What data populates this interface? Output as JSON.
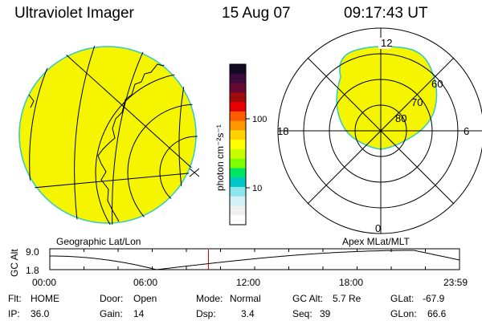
{
  "header": {
    "instrument": "Ultraviolet Imager",
    "date": "15 Aug 07",
    "time": "09:17:43 UT"
  },
  "colorbar": {
    "unit_label": "photon cm⁻²s⁻¹",
    "tick_100": "100",
    "tick_10": "10",
    "colors": [
      "#140a23",
      "#3c0a3c",
      "#640a32",
      "#a00a0a",
      "#e60000",
      "#ff5a00",
      "#ff9600",
      "#ffd200",
      "#ffff00",
      "#c8ff00",
      "#7dff00",
      "#00e664",
      "#00c8c8",
      "#8ce6f0",
      "#d2f0f5",
      "#f0f0f0",
      "#ffffff"
    ]
  },
  "left_panel": {
    "caption": "Geographic Lat/Lon",
    "fill_color": "#f5f500"
  },
  "right_panel": {
    "caption": "Apex MLat/MLT",
    "mlt_12": "12",
    "mlt_18": "18",
    "mlt_6": "6",
    "mlt_0": "0",
    "mlat_60": "60",
    "mlat_70": "70",
    "mlat_80": "80"
  },
  "altitude_plot": {
    "ylabel": "GC Alt",
    "ymax_label": "9.0",
    "ymin_label": "1.8",
    "x_ticks": [
      "00:00",
      "06:00",
      "12:00",
      "18:00",
      "23:59"
    ],
    "marker_color": "#cc0000",
    "marker_time": "09:17:43"
  },
  "info_rows": [
    [
      {
        "label": "Flt:",
        "value": "HOME"
      },
      {
        "label": "Door:",
        "value": "Open"
      },
      {
        "label": "Mode:",
        "value": "Normal"
      },
      {
        "label": "GC Alt:",
        "value": "5.7 Re"
      },
      {
        "label": "GLat:",
        "value": "-67.9"
      }
    ],
    [
      {
        "label": "IP:",
        "value": "36.0"
      },
      {
        "label": "Gain:",
        "value": "14"
      },
      {
        "label": "Dsp:",
        "value": "3.4"
      },
      {
        "label": "Seq:",
        "value": "39"
      },
      {
        "label": "GLon:",
        "value": "66.6"
      }
    ]
  ]
}
